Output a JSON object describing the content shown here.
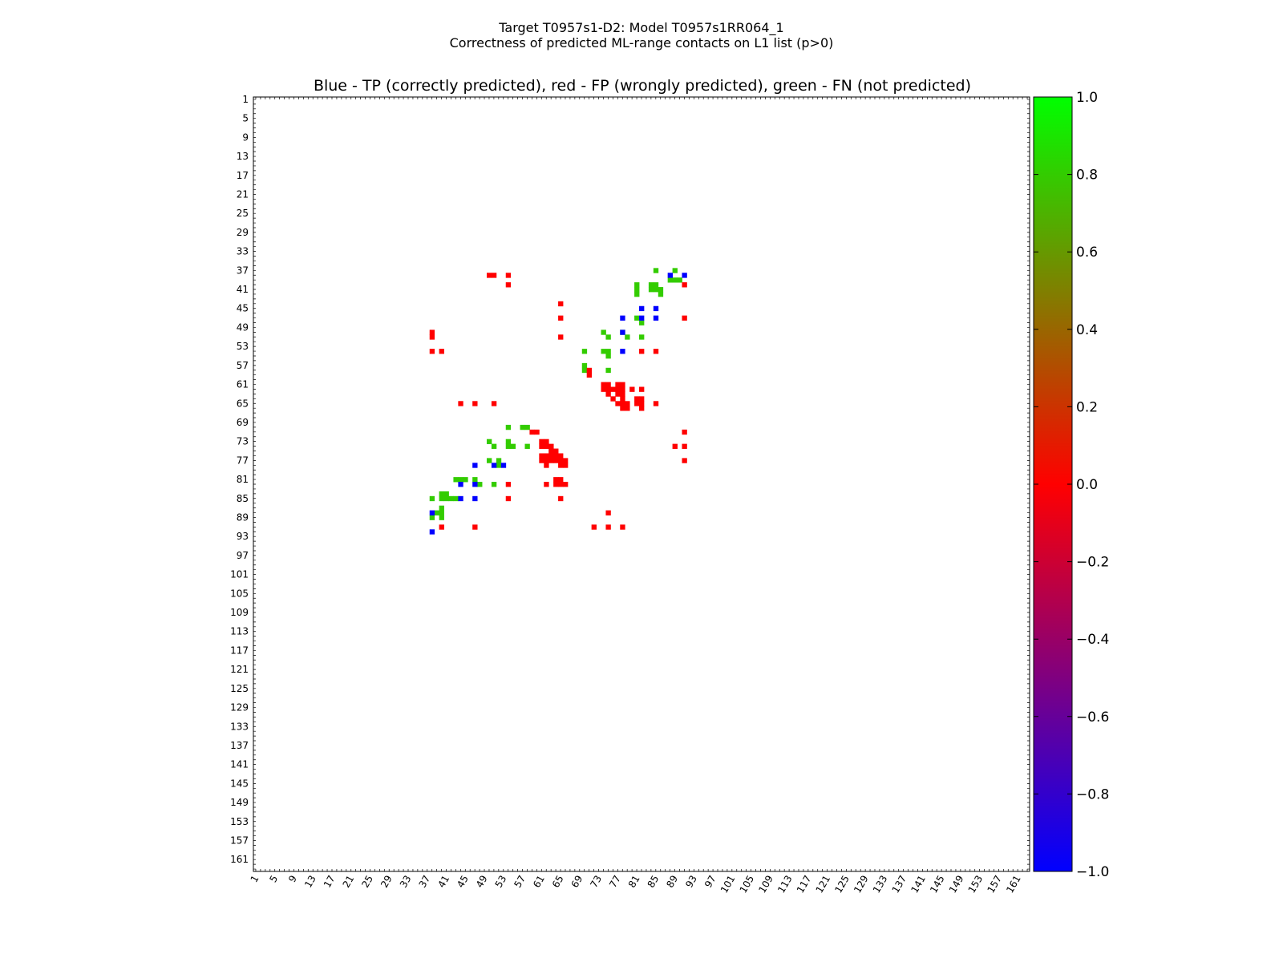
{
  "figure": {
    "suptitle_line1": "Target T0957s1-D2: Model T0957s1RR064_1",
    "suptitle_line2": "Correctness of predicted ML-range contacts on L1 list (p>0)"
  },
  "chart_data": {
    "type": "heatmap",
    "title": "Blue - TP (correctly predicted), red - FP (wrongly predicted), green - FN (not predicted)",
    "xlabel": "",
    "ylabel": "",
    "xlim": [
      1,
      163
    ],
    "ylim": [
      1,
      163
    ],
    "y_inverted": true,
    "tick_values": [
      1,
      5,
      9,
      13,
      17,
      21,
      25,
      29,
      33,
      37,
      41,
      45,
      49,
      53,
      57,
      61,
      65,
      69,
      73,
      77,
      81,
      85,
      89,
      93,
      97,
      101,
      105,
      109,
      113,
      117,
      121,
      125,
      129,
      133,
      137,
      141,
      145,
      149,
      153,
      157,
      161
    ],
    "colorbar": {
      "min": -1.0,
      "max": 1.0,
      "ticks": [
        "1.0",
        "0.8",
        "0.6",
        "0.4",
        "0.2",
        "0.0",
        "−0.2",
        "−0.4",
        "−0.6",
        "−0.8",
        "−1.0"
      ],
      "colors": [
        "#0000ff",
        "#ff0000",
        "#00ff00"
      ]
    },
    "categories": {
      "TP": {
        "value": -1,
        "color": "#0000ff"
      },
      "FP": {
        "value": 0,
        "color": "#ff0000"
      },
      "FN": {
        "value": 0.8,
        "color": "#33cc00"
      }
    },
    "cells": {
      "TP": [
        [
          88,
          38
        ],
        [
          91,
          38
        ],
        [
          78,
          47
        ],
        [
          82,
          47
        ],
        [
          85,
          47
        ],
        [
          82,
          45
        ],
        [
          85,
          45
        ],
        [
          78,
          50
        ],
        [
          78,
          54
        ],
        [
          47,
          78
        ],
        [
          53,
          78
        ],
        [
          51,
          78
        ],
        [
          44,
          82
        ],
        [
          47,
          82
        ],
        [
          44,
          85
        ],
        [
          47,
          85
        ],
        [
          38,
          88
        ],
        [
          38,
          92
        ]
      ],
      "FP": [
        [
          50,
          38
        ],
        [
          51,
          38
        ],
        [
          54,
          38
        ],
        [
          54,
          40
        ],
        [
          91,
          40
        ],
        [
          65,
          44
        ],
        [
          65,
          47
        ],
        [
          91,
          47
        ],
        [
          65,
          51
        ],
        [
          38,
          50
        ],
        [
          38,
          51
        ],
        [
          38,
          54
        ],
        [
          40,
          54
        ],
        [
          82,
          54
        ],
        [
          85,
          54
        ],
        [
          71,
          58
        ],
        [
          71,
          59
        ],
        [
          74,
          61
        ],
        [
          75,
          61
        ],
        [
          77,
          61
        ],
        [
          78,
          61
        ],
        [
          74,
          62
        ],
        [
          75,
          62
        ],
        [
          76,
          62
        ],
        [
          77,
          62
        ],
        [
          78,
          62
        ],
        [
          80,
          62
        ],
        [
          82,
          62
        ],
        [
          75,
          63
        ],
        [
          77,
          63
        ],
        [
          78,
          63
        ],
        [
          76,
          64
        ],
        [
          78,
          64
        ],
        [
          81,
          64
        ],
        [
          82,
          64
        ],
        [
          77,
          65
        ],
        [
          78,
          65
        ],
        [
          79,
          65
        ],
        [
          81,
          65
        ],
        [
          82,
          65
        ],
        [
          85,
          65
        ],
        [
          78,
          66
        ],
        [
          79,
          66
        ],
        [
          82,
          66
        ],
        [
          44,
          65
        ],
        [
          47,
          65
        ],
        [
          51,
          65
        ],
        [
          59,
          71
        ],
        [
          60,
          71
        ],
        [
          91,
          71
        ],
        [
          61,
          73
        ],
        [
          62,
          73
        ],
        [
          61,
          74
        ],
        [
          62,
          74
        ],
        [
          63,
          74
        ],
        [
          89,
          74
        ],
        [
          91,
          74
        ],
        [
          63,
          75
        ],
        [
          64,
          75
        ],
        [
          61,
          76
        ],
        [
          62,
          76
        ],
        [
          63,
          76
        ],
        [
          64,
          76
        ],
        [
          65,
          76
        ],
        [
          61,
          77
        ],
        [
          62,
          77
        ],
        [
          63,
          77
        ],
        [
          64,
          77
        ],
        [
          65,
          77
        ],
        [
          66,
          77
        ],
        [
          62,
          78
        ],
        [
          65,
          78
        ],
        [
          66,
          78
        ],
        [
          91,
          77
        ],
        [
          64,
          81
        ],
        [
          65,
          81
        ],
        [
          62,
          82
        ],
        [
          64,
          82
        ],
        [
          65,
          82
        ],
        [
          66,
          82
        ],
        [
          54,
          82
        ],
        [
          54,
          85
        ],
        [
          65,
          85
        ],
        [
          75,
          88
        ],
        [
          40,
          91
        ],
        [
          47,
          91
        ],
        [
          72,
          91
        ],
        [
          75,
          91
        ],
        [
          78,
          91
        ]
      ],
      "FN": [
        [
          85,
          37
        ],
        [
          89,
          37
        ],
        [
          88,
          39
        ],
        [
          89,
          39
        ],
        [
          90,
          39
        ],
        [
          81,
          40
        ],
        [
          84,
          40
        ],
        [
          85,
          40
        ],
        [
          81,
          41
        ],
        [
          84,
          41
        ],
        [
          85,
          41
        ],
        [
          86,
          41
        ],
        [
          81,
          42
        ],
        [
          86,
          42
        ],
        [
          81,
          47
        ],
        [
          82,
          48
        ],
        [
          74,
          50
        ],
        [
          75,
          51
        ],
        [
          78,
          50
        ],
        [
          79,
          51
        ],
        [
          82,
          51
        ],
        [
          70,
          54
        ],
        [
          74,
          54
        ],
        [
          75,
          54
        ],
        [
          75,
          55
        ],
        [
          70,
          57
        ],
        [
          70,
          58
        ],
        [
          75,
          58
        ],
        [
          54,
          70
        ],
        [
          57,
          70
        ],
        [
          58,
          70
        ],
        [
          54,
          73
        ],
        [
          54,
          74
        ],
        [
          55,
          74
        ],
        [
          50,
          73
        ],
        [
          51,
          74
        ],
        [
          58,
          74
        ],
        [
          50,
          77
        ],
        [
          52,
          77
        ],
        [
          52,
          78
        ],
        [
          43,
          81
        ],
        [
          44,
          81
        ],
        [
          45,
          81
        ],
        [
          47,
          81
        ],
        [
          48,
          82
        ],
        [
          51,
          82
        ],
        [
          40,
          84
        ],
        [
          41,
          84
        ],
        [
          40,
          85
        ],
        [
          41,
          85
        ],
        [
          42,
          85
        ],
        [
          43,
          85
        ],
        [
          38,
          85
        ],
        [
          40,
          87
        ],
        [
          39,
          88
        ],
        [
          40,
          88
        ],
        [
          38,
          89
        ],
        [
          40,
          89
        ]
      ]
    }
  }
}
